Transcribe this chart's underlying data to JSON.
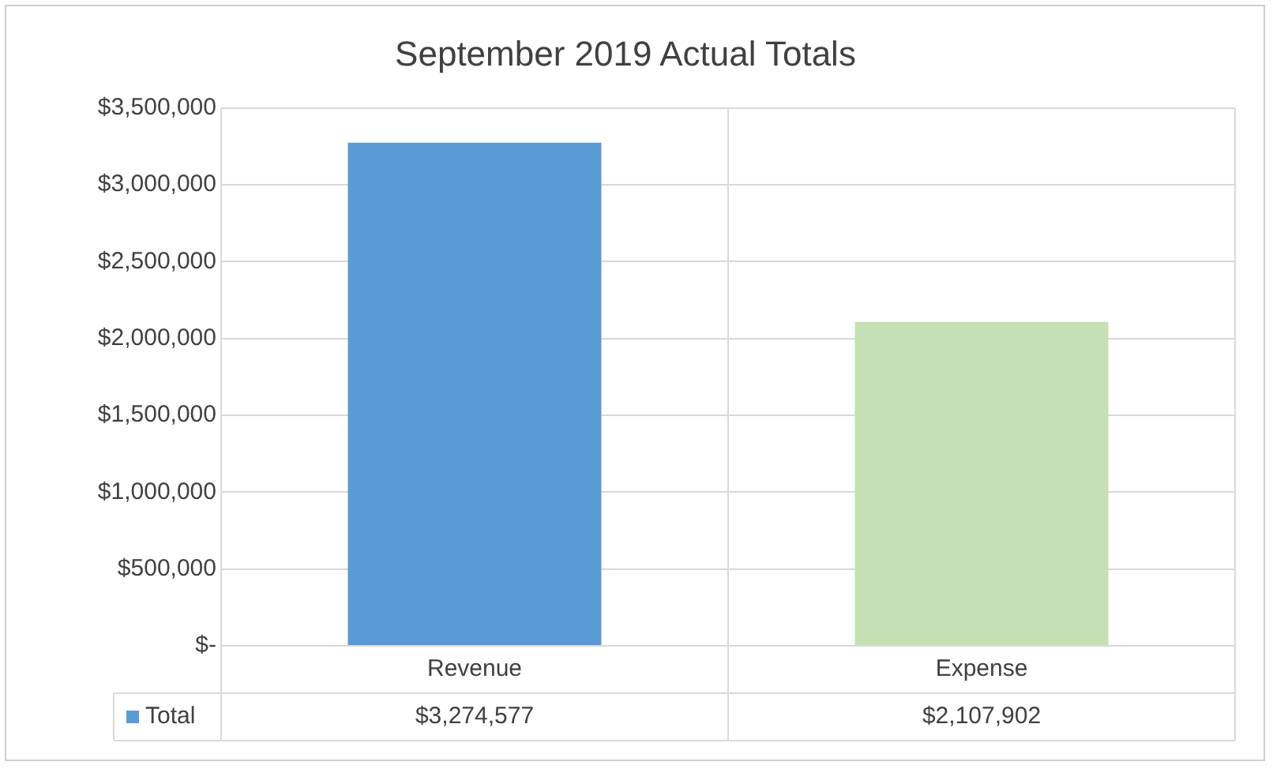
{
  "chart_data": {
    "type": "bar",
    "title": "September 2019 Actual Totals",
    "categories": [
      "Revenue",
      "Expense"
    ],
    "series": [
      {
        "name": "Total",
        "colors": [
          "#5b9bd5",
          "#c5e0b4"
        ],
        "values": [
          3274577,
          2107902
        ],
        "value_labels": [
          "$3,274,577",
          "$2,107,902"
        ]
      }
    ],
    "ylim": [
      0,
      3500000
    ],
    "yticks": [
      {
        "value": 0,
        "label": "$-"
      },
      {
        "value": 500000,
        "label": "$500,000"
      },
      {
        "value": 1000000,
        "label": "$1,000,000"
      },
      {
        "value": 1500000,
        "label": "$1,500,000"
      },
      {
        "value": 2000000,
        "label": "$2,000,000"
      },
      {
        "value": 2500000,
        "label": "$2,500,000"
      },
      {
        "value": 3000000,
        "label": "$3,000,000"
      },
      {
        "value": 3500000,
        "label": "$3,500,000"
      }
    ],
    "grid": true,
    "legend": "bottom"
  }
}
